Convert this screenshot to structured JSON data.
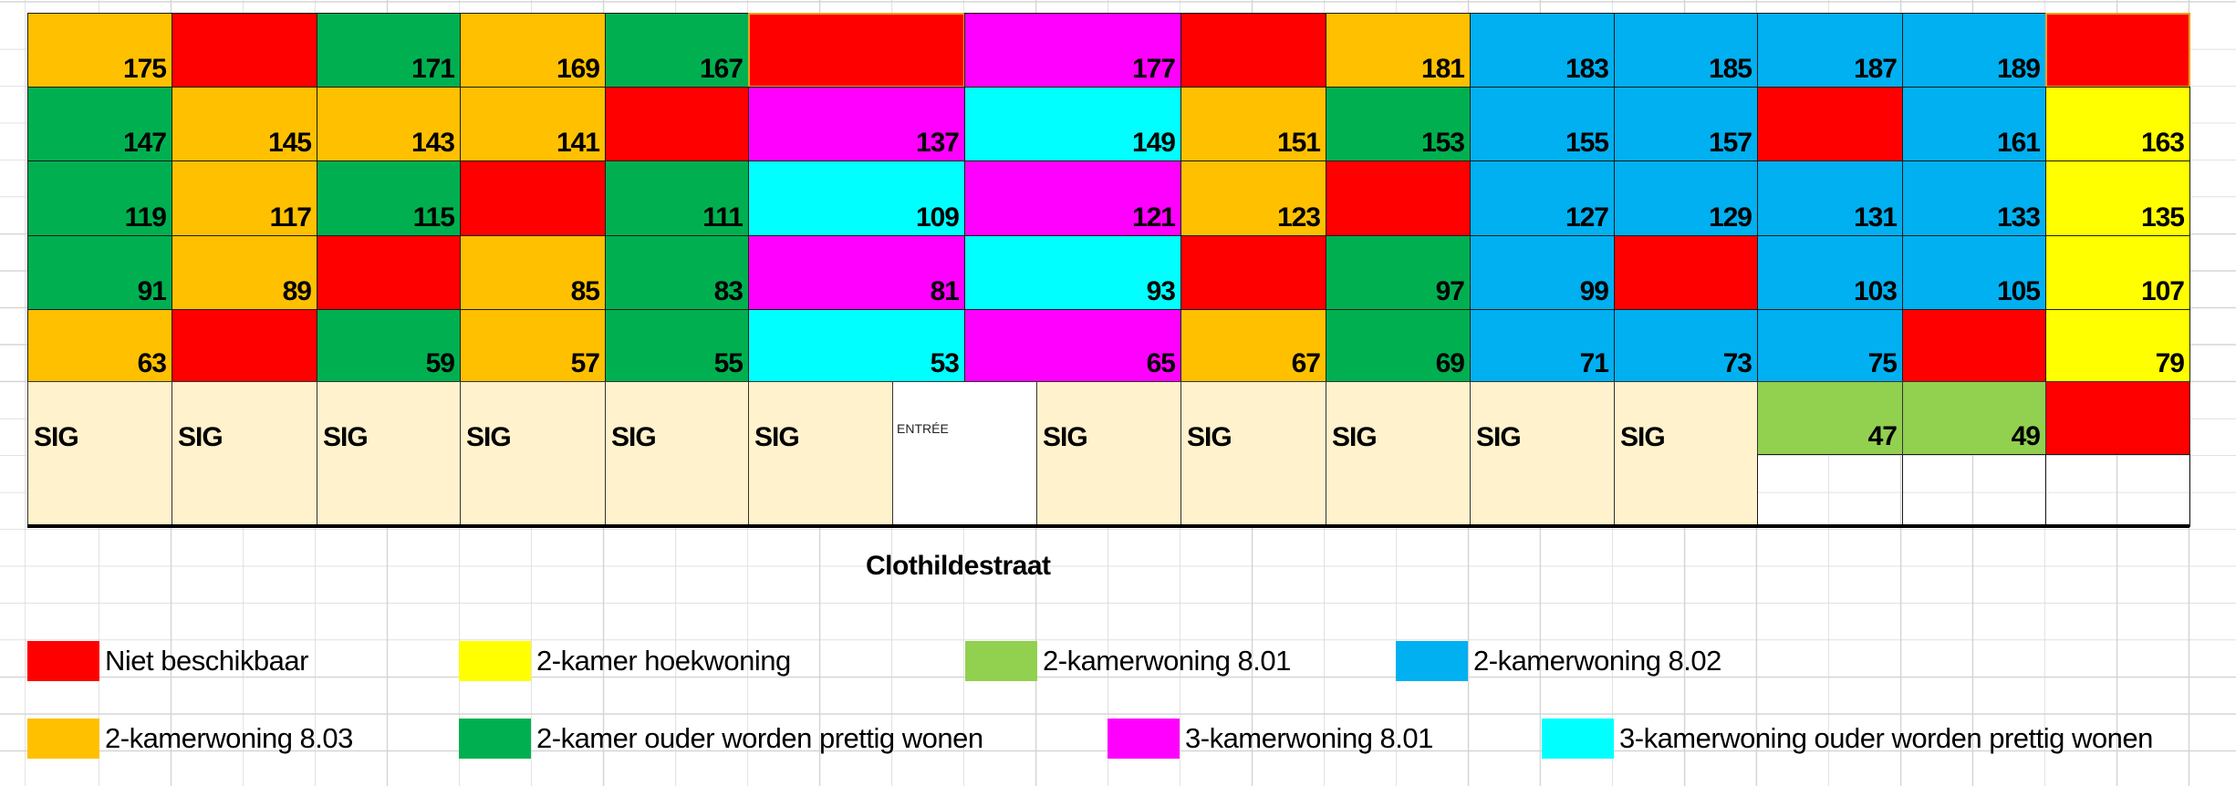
{
  "palette": {
    "R": "#FF0000",
    "Y": "#FFFF00",
    "LG": "#92D050",
    "B": "#00B0F0",
    "O": "#FFC000",
    "G": "#00B050",
    "M": "#FF00FF",
    "C": "#00FFFF",
    "S": "#FFF2CC",
    "W": "#FFFFFF"
  },
  "grid": {
    "rows": [
      [
        [
          "O",
          "175"
        ],
        [
          "R",
          ""
        ],
        [
          "G",
          "171"
        ],
        [
          "O",
          "169"
        ],
        [
          "G",
          "167"
        ],
        [
          "R",
          ""
        ],
        [
          "M",
          "177"
        ],
        [
          "R",
          ""
        ],
        [
          "O",
          "181"
        ],
        [
          "B",
          "183"
        ],
        [
          "B",
          "185"
        ],
        [
          "B",
          "187"
        ],
        [
          "B",
          "189"
        ],
        [
          "R",
          ""
        ]
      ],
      [
        [
          "G",
          "147"
        ],
        [
          "O",
          "145"
        ],
        [
          "O",
          "143"
        ],
        [
          "O",
          "141"
        ],
        [
          "R",
          ""
        ],
        [
          "M",
          "137"
        ],
        [
          "C",
          "149"
        ],
        [
          "O",
          "151"
        ],
        [
          "G",
          "153"
        ],
        [
          "B",
          "155"
        ],
        [
          "B",
          "157"
        ],
        [
          "R",
          ""
        ],
        [
          "B",
          "161"
        ],
        [
          "Y",
          "163"
        ]
      ],
      [
        [
          "G",
          "119"
        ],
        [
          "O",
          "117"
        ],
        [
          "G",
          "115"
        ],
        [
          "R",
          ""
        ],
        [
          "G",
          "111"
        ],
        [
          "C",
          "109"
        ],
        [
          "M",
          "121"
        ],
        [
          "O",
          "123"
        ],
        [
          "R",
          ""
        ],
        [
          "B",
          "127"
        ],
        [
          "B",
          "129"
        ],
        [
          "B",
          "131"
        ],
        [
          "B",
          "133"
        ],
        [
          "Y",
          "135"
        ]
      ],
      [
        [
          "G",
          "91"
        ],
        [
          "O",
          "89"
        ],
        [
          "R",
          ""
        ],
        [
          "O",
          "85"
        ],
        [
          "G",
          "83"
        ],
        [
          "M",
          "81"
        ],
        [
          "C",
          "93"
        ],
        [
          "R",
          ""
        ],
        [
          "G",
          "97"
        ],
        [
          "B",
          "99"
        ],
        [
          "R",
          ""
        ],
        [
          "B",
          "103"
        ],
        [
          "B",
          "105"
        ],
        [
          "Y",
          "107"
        ]
      ],
      [
        [
          "O",
          "63"
        ],
        [
          "R",
          ""
        ],
        [
          "G",
          "59"
        ],
        [
          "O",
          "57"
        ],
        [
          "G",
          "55"
        ],
        [
          "C",
          "53"
        ],
        [
          "M",
          "65"
        ],
        [
          "O",
          "67"
        ],
        [
          "G",
          "69"
        ],
        [
          "B",
          "71"
        ],
        [
          "B",
          "73"
        ],
        [
          "B",
          "75"
        ],
        [
          "R",
          ""
        ],
        [
          "Y",
          "79"
        ]
      ]
    ],
    "ground_floor": [
      [
        "S",
        "SIG"
      ],
      [
        "S",
        "SIG"
      ],
      [
        "S",
        "SIG"
      ],
      [
        "S",
        "SIG"
      ],
      [
        "S",
        "SIG"
      ],
      [
        "S",
        "SIG"
      ],
      [
        "W",
        "ENTRÉE"
      ],
      [
        "S",
        "SIG"
      ],
      [
        "S",
        "SIG"
      ],
      [
        "S",
        "SIG"
      ],
      [
        "S",
        "SIG"
      ],
      [
        "S",
        "SIG"
      ],
      [
        "LG",
        "47"
      ],
      [
        "LG",
        "49"
      ],
      [
        "R",
        ""
      ]
    ]
  },
  "street_name": "Clothildestraat",
  "legend": [
    {
      "color": "#FF0000",
      "label": "Niet beschikbaar"
    },
    {
      "color": "#FFFF00",
      "label": "2-kamer hoekwoning"
    },
    {
      "color": "#92D050",
      "label": "2-kamerwoning 8.01"
    },
    {
      "color": "#00B0F0",
      "label": "2-kamerwoning 8.02"
    },
    {
      "color": "#FFC000",
      "label": "2-kamerwoning 8.03"
    },
    {
      "color": "#00B050",
      "label": "2-kamer ouder worden prettig wonen"
    },
    {
      "color": "#FF00FF",
      "label": "3-kamerwoning 8.01"
    },
    {
      "color": "#00FFFF",
      "label": "3-kamerwoning ouder worden prettig wonen"
    }
  ]
}
